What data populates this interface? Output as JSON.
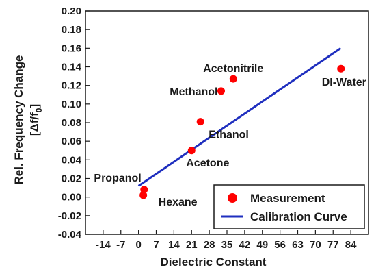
{
  "chart_data": {
    "type": "scatter",
    "xlabel": "Dielectric Constant",
    "ylabel_line1": "Rel. Frequency Change",
    "ylabel_line2_main": "[Δf/f",
    "ylabel_line2_sub": "0",
    "ylabel_line2_end": "]",
    "xlim": [
      -21,
      91
    ],
    "ylim": [
      -0.04,
      0.2
    ],
    "x_ticks": [
      -14,
      -7,
      0,
      7,
      14,
      21,
      28,
      35,
      42,
      49,
      56,
      63,
      70,
      77,
      84
    ],
    "x_tick_labels": [
      "-14",
      "-7",
      "0",
      "7",
      "14",
      "21",
      "28",
      "35",
      "42",
      "49",
      "56",
      "63",
      "70",
      "77",
      "84"
    ],
    "y_ticks": [
      -0.04,
      -0.02,
      0.0,
      0.02,
      0.04,
      0.06,
      0.08,
      0.1,
      0.12,
      0.14,
      0.16,
      0.18,
      0.2
    ],
    "y_tick_labels": [
      "-0.04",
      "-0.02",
      "0.00",
      "0.02",
      "0.04",
      "0.06",
      "0.08",
      "0.10",
      "0.12",
      "0.14",
      "0.16",
      "0.18",
      "0.20"
    ],
    "grid": false,
    "legend_position": "bottom-right",
    "series": [
      {
        "name": "Measurement",
        "type": "scatter",
        "color": "#ff0000",
        "points": [
          {
            "label": "Hexane",
            "x": 1.9,
            "y": 0.002
          },
          {
            "label": "Propanol",
            "x": 2.2,
            "y": 0.008
          },
          {
            "label": "Acetone",
            "x": 21.0,
            "y": 0.05
          },
          {
            "label": "Ethanol",
            "x": 24.5,
            "y": 0.081
          },
          {
            "label": "Methanol",
            "x": 32.7,
            "y": 0.114
          },
          {
            "label": "Acetonitrile",
            "x": 37.5,
            "y": 0.127
          },
          {
            "label": "DI-Water",
            "x": 80.1,
            "y": 0.138
          }
        ]
      },
      {
        "name": "Calibration Curve",
        "type": "line",
        "color": "#1f2fbf",
        "x": [
          0,
          80
        ],
        "y": [
          0.012,
          0.16
        ]
      }
    ]
  }
}
